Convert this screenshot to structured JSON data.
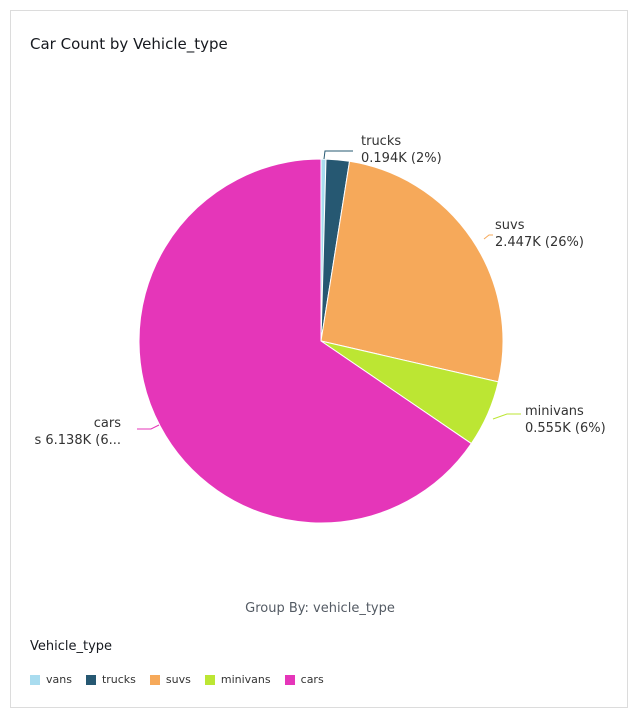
{
  "chart_title": "Car Count by Vehicle_type",
  "group_by_label": "Group By: vehicle_type",
  "legend_title": "Vehicle_type",
  "chart_data": {
    "type": "pie",
    "title": "Car Count by Vehicle_type",
    "legend_placement": "bottom-left",
    "slices": [
      {
        "name": "vans",
        "value": 0.041,
        "display": "",
        "percent": "",
        "color": "#a9dcef"
      },
      {
        "name": "trucks",
        "value": 0.194,
        "display": "0.194K",
        "percent": "2%",
        "color": "#265872"
      },
      {
        "name": "suvs",
        "value": 2.447,
        "display": "2.447K",
        "percent": "26%",
        "color": "#f6a95a"
      },
      {
        "name": "minivans",
        "value": 0.555,
        "display": "0.555K",
        "percent": "6%",
        "color": "#bce633"
      },
      {
        "name": "cars",
        "value": 6.138,
        "display": "6.138K",
        "percent": "6...",
        "color": "#e536b9"
      }
    ],
    "cars_label_line2": "s 6.138K (6..."
  }
}
